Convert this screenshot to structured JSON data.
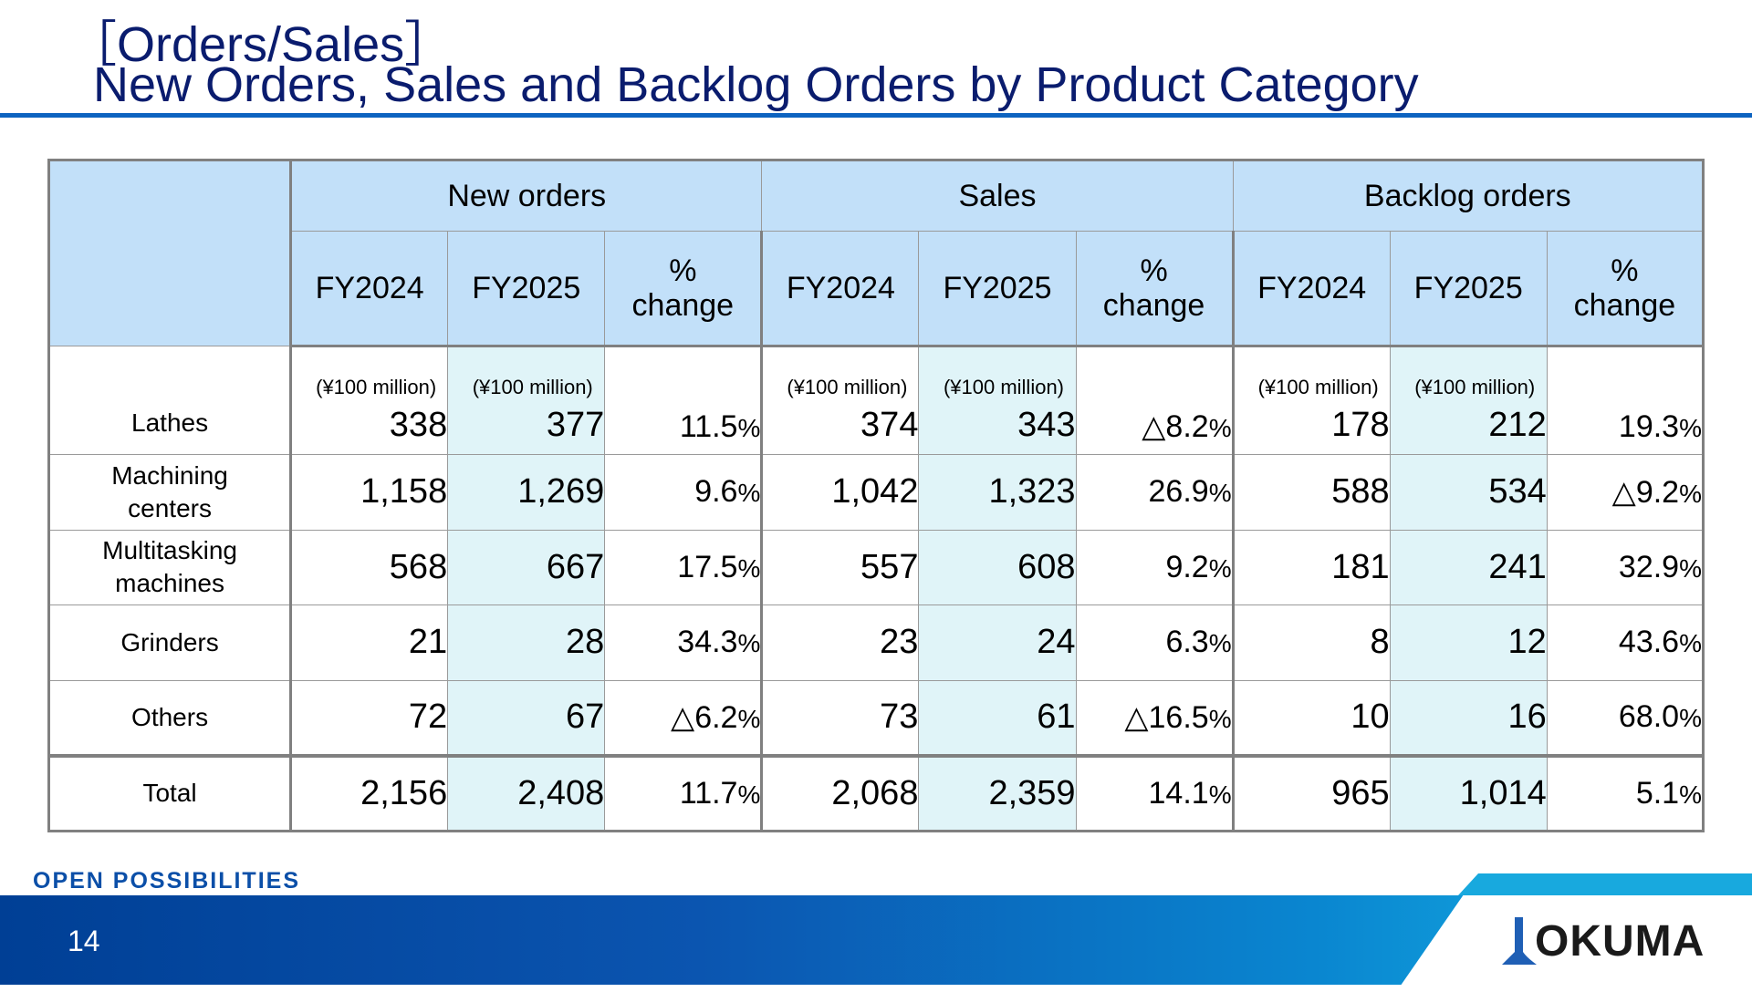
{
  "header": {
    "title_line1": "［Orders/Sales］",
    "title_line2": "New Orders, Sales and Backlog Orders by Product Category"
  },
  "table": {
    "groups": [
      "New orders",
      "Sales",
      "Backlog orders"
    ],
    "subheaders": {
      "fy_prev": "FY2024",
      "fy_curr": "FY2025",
      "pct_line1": "%",
      "pct_line2": "change"
    },
    "unit": "(¥100 million)",
    "rows": [
      {
        "category": [
          "Lathes"
        ],
        "new_orders": [
          "338",
          "377",
          "11.5"
        ],
        "sales": [
          "374",
          "343",
          "△8.2"
        ],
        "backlog": [
          "178",
          "212",
          "19.3"
        ]
      },
      {
        "category": [
          "Machining",
          "centers"
        ],
        "new_orders": [
          "1,158",
          "1,269",
          "9.6"
        ],
        "sales": [
          "1,042",
          "1,323",
          "26.9"
        ],
        "backlog": [
          "588",
          "534",
          "△9.2"
        ]
      },
      {
        "category": [
          "Multitasking",
          "machines"
        ],
        "new_orders": [
          "568",
          "667",
          "17.5"
        ],
        "sales": [
          "557",
          "608",
          "9.2"
        ],
        "backlog": [
          "181",
          "241",
          "32.9"
        ]
      },
      {
        "category": [
          "Grinders"
        ],
        "new_orders": [
          "21",
          "28",
          "34.3"
        ],
        "sales": [
          "23",
          "24",
          "6.3"
        ],
        "backlog": [
          "8",
          "12",
          "43.6"
        ]
      },
      {
        "category": [
          "Others"
        ],
        "new_orders": [
          "72",
          "67",
          "△6.2"
        ],
        "sales": [
          "73",
          "61",
          "△16.5"
        ],
        "backlog": [
          "10",
          "16",
          "68.0"
        ]
      },
      {
        "category": [
          "Total"
        ],
        "new_orders": [
          "2,156",
          "2,408",
          "11.7"
        ],
        "sales": [
          "2,068",
          "2,359",
          "14.1"
        ],
        "backlog": [
          "965",
          "1,014",
          "5.1"
        ]
      }
    ],
    "pct_suffix": "%"
  },
  "footer": {
    "slogan": "OPEN POSSIBILITIES",
    "page_number": "14",
    "logo_text": "OKUMA"
  },
  "colors": {
    "title": "#0a1c6e",
    "header_fill": "#c2e0f9",
    "highlight_fill": "#e0f4f8",
    "footer_blue": "#003f95",
    "footer_cyan": "#17b6e6"
  }
}
